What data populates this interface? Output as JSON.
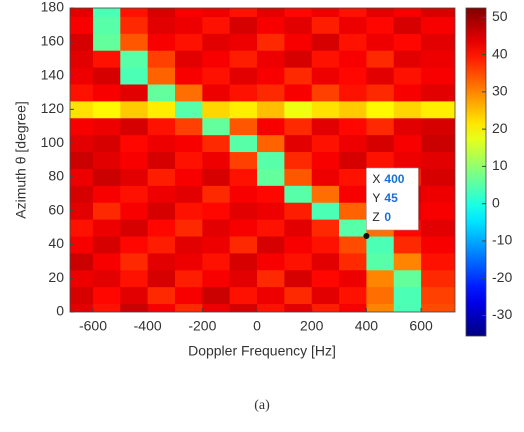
{
  "chart_data": {
    "type": "heatmap",
    "x_label": "Doppler Frequency [Hz]",
    "y_label": "Azimuth θ [degree]",
    "caption": "(a)",
    "x": [
      -650,
      -550,
      -450,
      -350,
      -250,
      -150,
      -50,
      50,
      150,
      250,
      350,
      450,
      550,
      650
    ],
    "y": [
      0,
      10,
      20,
      30,
      40,
      50,
      60,
      70,
      80,
      90,
      100,
      110,
      120,
      130,
      140,
      150,
      160,
      170,
      180
    ],
    "z": [
      [
        44,
        40,
        46,
        42,
        38,
        43,
        45,
        40,
        44,
        39,
        42,
        30,
        4,
        35
      ],
      [
        45,
        41,
        44,
        38,
        42,
        46,
        40,
        43,
        38,
        44,
        40,
        32,
        4,
        36
      ],
      [
        43,
        44,
        40,
        45,
        39,
        42,
        44,
        38,
        45,
        41,
        43,
        30,
        6,
        38
      ],
      [
        46,
        42,
        38,
        44,
        43,
        40,
        45,
        42,
        40,
        44,
        38,
        5,
        30,
        40
      ],
      [
        42,
        45,
        41,
        39,
        44,
        43,
        38,
        45,
        42,
        40,
        35,
        4,
        38,
        42
      ],
      [
        40,
        43,
        45,
        41,
        38,
        44,
        42,
        40,
        44,
        38,
        5,
        32,
        41,
        44
      ],
      [
        44,
        38,
        42,
        45,
        40,
        41,
        44,
        43,
        39,
        4,
        33,
        40,
        44,
        42
      ],
      [
        45,
        42,
        40,
        43,
        44,
        38,
        42,
        41,
        5,
        32,
        42,
        38,
        45,
        43
      ],
      [
        43,
        46,
        44,
        39,
        42,
        45,
        40,
        6,
        34,
        43,
        40,
        44,
        39,
        45
      ],
      [
        46,
        44,
        42,
        45,
        40,
        43,
        36,
        5,
        38,
        42,
        45,
        40,
        43,
        44
      ],
      [
        44,
        45,
        41,
        43,
        42,
        38,
        5,
        33,
        44,
        40,
        43,
        45,
        42,
        46
      ],
      [
        42,
        43,
        45,
        40,
        36,
        6,
        34,
        42,
        38,
        44,
        41,
        38,
        44,
        45
      ],
      [
        22,
        20,
        24,
        21,
        5,
        23,
        21,
        25,
        18,
        22,
        24,
        20,
        23,
        21
      ],
      [
        40,
        42,
        44,
        6,
        32,
        43,
        40,
        38,
        42,
        36,
        40,
        38,
        42,
        44
      ],
      [
        43,
        45,
        4,
        33,
        42,
        40,
        44,
        42,
        38,
        43,
        41,
        44,
        40,
        42
      ],
      [
        44,
        40,
        5,
        36,
        44,
        42,
        39,
        43,
        45,
        40,
        42,
        38,
        44,
        43
      ],
      [
        45,
        6,
        34,
        42,
        40,
        44,
        43,
        38,
        42,
        45,
        40,
        43,
        41,
        44
      ],
      [
        42,
        5,
        38,
        44,
        43,
        40,
        45,
        42,
        44,
        39,
        43,
        41,
        45,
        42
      ],
      [
        44,
        4,
        40,
        45,
        42,
        43,
        40,
        44,
        41,
        43,
        40,
        44,
        42,
        45
      ]
    ],
    "xlim": [
      -684,
      724
    ],
    "ylim": [
      0,
      180
    ],
    "xticks": [
      -600,
      -400,
      -200,
      0,
      200,
      400,
      600
    ],
    "yticks": [
      0,
      20,
      40,
      60,
      80,
      100,
      120,
      140,
      160,
      180
    ],
    "clim": [
      -35.5,
      52.5
    ],
    "cticks": [
      -30,
      -20,
      -10,
      0,
      10,
      20,
      30,
      40,
      50
    ],
    "colormap": "jet",
    "datatip": {
      "x_label": "X",
      "x": 400,
      "y_label": "Y",
      "y": 45,
      "z_label": "Z",
      "z": 0
    }
  }
}
